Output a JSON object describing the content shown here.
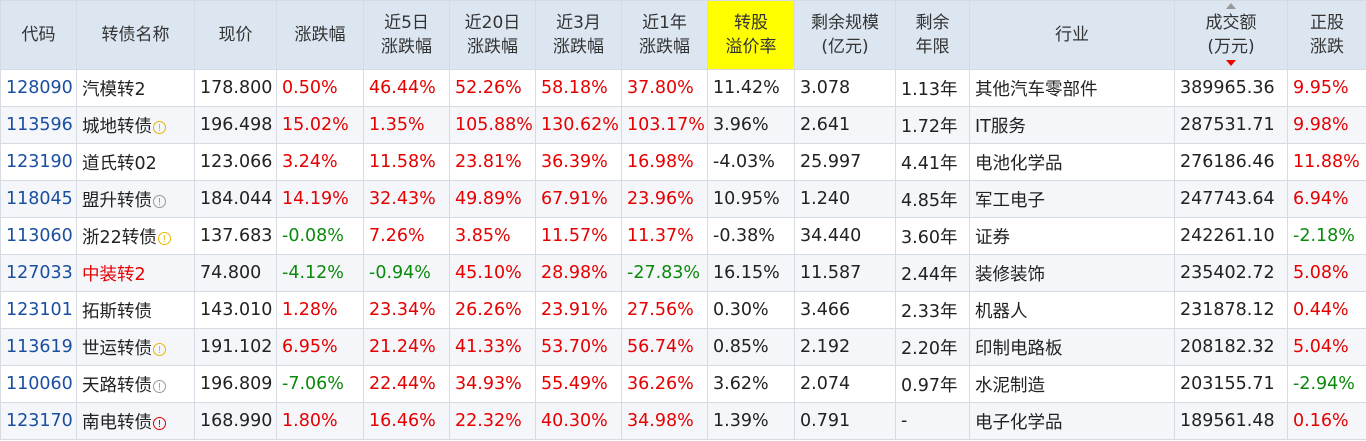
{
  "columns": [
    "代码",
    "转债名称",
    "现价",
    "涨跌幅",
    "近5日\n涨跌幅",
    "近20日\n涨跌幅",
    "近3月\n涨跌幅",
    "近1年\n涨跌幅",
    "转股\n溢价率",
    "剩余规模\n(亿元)",
    "剩余\n年限",
    "行业",
    "成交额\n(万元)",
    "正股\n涨跌"
  ],
  "rows": [
    {
      "code": "128090",
      "name": "汽模转2",
      "name_color": "normal",
      "warn": "none",
      "price": "178.800",
      "chg": "0.50%",
      "chg5": "46.44%",
      "chg20": "52.26%",
      "chg3m": "58.18%",
      "chg1y": "37.80%",
      "premium": "11.42%",
      "scale": "3.078",
      "years": "1.13年",
      "industry": "其他汽车零部件",
      "turnover": "389965.36",
      "stock_chg": "9.95%"
    },
    {
      "code": "113596",
      "name": "城地转债",
      "name_color": "normal",
      "warn": "yellow",
      "price": "196.498",
      "chg": "15.02%",
      "chg5": "1.35%",
      "chg20": "105.88%",
      "chg3m": "130.62%",
      "chg1y": "103.17%",
      "premium": "3.96%",
      "scale": "2.641",
      "years": "1.72年",
      "industry": "IT服务",
      "turnover": "287531.71",
      "stock_chg": "9.98%"
    },
    {
      "code": "123190",
      "name": "道氏转02",
      "name_color": "normal",
      "warn": "none",
      "price": "123.066",
      "chg": "3.24%",
      "chg5": "11.58%",
      "chg20": "23.81%",
      "chg3m": "36.39%",
      "chg1y": "16.98%",
      "premium": "-4.03%",
      "scale": "25.997",
      "years": "4.41年",
      "industry": "电池化学品",
      "turnover": "276186.46",
      "stock_chg": "11.88%"
    },
    {
      "code": "118045",
      "name": "盟升转债",
      "name_color": "normal",
      "warn": "gray",
      "price": "184.044",
      "chg": "14.19%",
      "chg5": "32.43%",
      "chg20": "49.89%",
      "chg3m": "67.91%",
      "chg1y": "23.96%",
      "premium": "10.95%",
      "scale": "1.240",
      "years": "4.85年",
      "industry": "军工电子",
      "turnover": "247743.64",
      "stock_chg": "6.94%"
    },
    {
      "code": "113060",
      "name": "浙22转债",
      "name_color": "normal",
      "warn": "yellow",
      "price": "137.683",
      "chg": "-0.08%",
      "chg5": "7.26%",
      "chg20": "3.85%",
      "chg3m": "11.57%",
      "chg1y": "11.37%",
      "premium": "-0.38%",
      "scale": "34.440",
      "years": "3.60年",
      "industry": "证券",
      "turnover": "242261.10",
      "stock_chg": "-2.18%"
    },
    {
      "code": "127033",
      "name": "中装转2",
      "name_color": "red",
      "warn": "none",
      "price": "74.800",
      "chg": "-4.12%",
      "chg5": "-0.94%",
      "chg20": "45.10%",
      "chg3m": "28.98%",
      "chg1y": "-27.83%",
      "premium": "16.15%",
      "scale": "11.587",
      "years": "2.44年",
      "industry": "装修装饰",
      "turnover": "235402.72",
      "stock_chg": "5.08%"
    },
    {
      "code": "123101",
      "name": "拓斯转债",
      "name_color": "normal",
      "warn": "none",
      "price": "143.010",
      "chg": "1.28%",
      "chg5": "23.34%",
      "chg20": "26.26%",
      "chg3m": "23.91%",
      "chg1y": "27.56%",
      "premium": "0.30%",
      "scale": "3.466",
      "years": "2.33年",
      "industry": "机器人",
      "turnover": "231878.12",
      "stock_chg": "0.44%"
    },
    {
      "code": "113619",
      "name": "世运转债",
      "name_color": "normal",
      "warn": "yellow",
      "price": "191.102",
      "chg": "6.95%",
      "chg5": "21.24%",
      "chg20": "41.33%",
      "chg3m": "53.70%",
      "chg1y": "56.74%",
      "premium": "0.85%",
      "scale": "2.192",
      "years": "2.20年",
      "industry": "印制电路板",
      "turnover": "208182.32",
      "stock_chg": "5.04%"
    },
    {
      "code": "110060",
      "name": "天路转债",
      "name_color": "normal",
      "warn": "gray",
      "price": "196.809",
      "chg": "-7.06%",
      "chg5": "22.44%",
      "chg20": "34.93%",
      "chg3m": "55.49%",
      "chg1y": "36.26%",
      "premium": "3.62%",
      "scale": "2.074",
      "years": "0.97年",
      "industry": "水泥制造",
      "turnover": "203155.71",
      "stock_chg": "-2.94%"
    },
    {
      "code": "123170",
      "name": "南电转债",
      "name_color": "normal",
      "warn": "red",
      "price": "168.990",
      "chg": "1.80%",
      "chg5": "16.46%",
      "chg20": "22.32%",
      "chg3m": "40.30%",
      "chg1y": "34.98%",
      "premium": "1.39%",
      "scale": "0.791",
      "years": "-",
      "industry": "电子化学品",
      "turnover": "189561.48",
      "stock_chg": "0.16%"
    }
  ]
}
